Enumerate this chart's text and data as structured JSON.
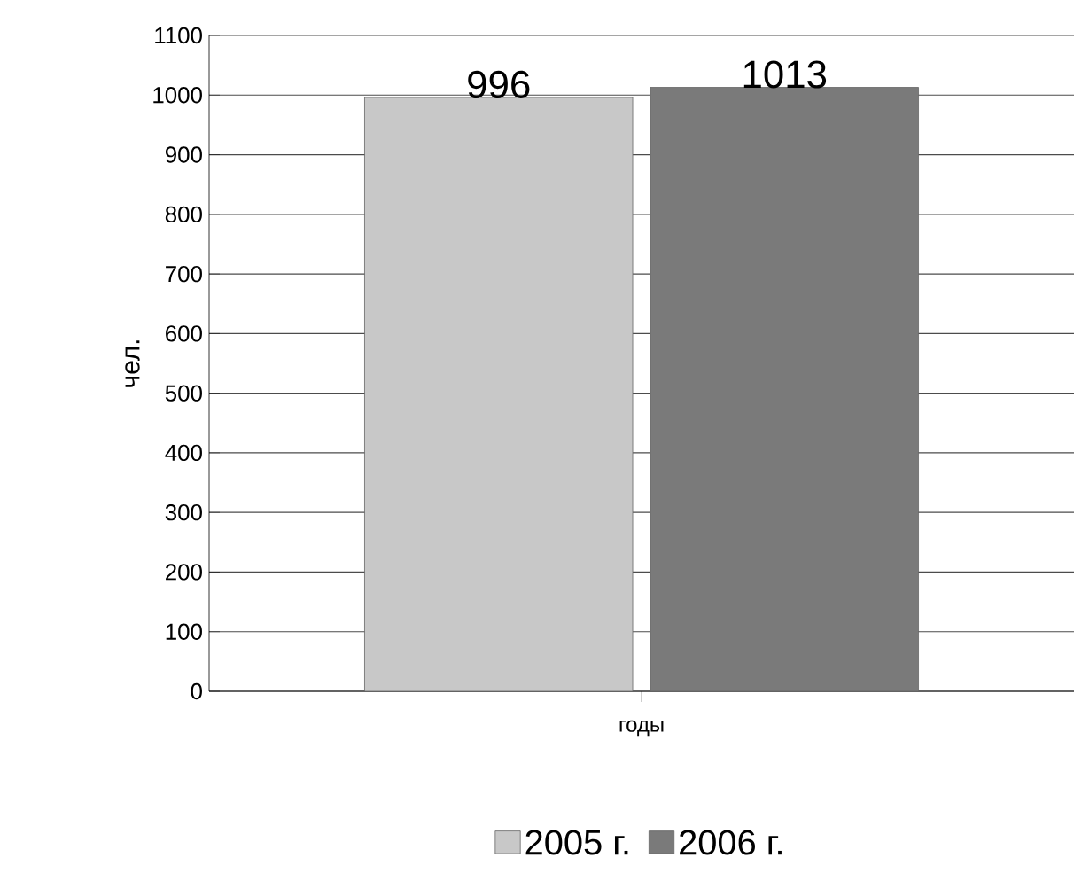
{
  "chart_data": {
    "type": "bar",
    "xlabel": "годы",
    "ylabel": "чел.",
    "categories": [
      null
    ],
    "series": [
      {
        "name": "2005 г.",
        "color": "#c8c8c8",
        "values": [
          996
        ]
      },
      {
        "name": "2006 г.",
        "color": "#7a7a7a",
        "values": [
          1013
        ]
      }
    ],
    "ylim": [
      0,
      1100
    ],
    "yticks": [
      0,
      100,
      200,
      300,
      400,
      500,
      600,
      700,
      800,
      900,
      1000,
      1100
    ],
    "grid": "y",
    "legend": "bottom",
    "data_labels": true
  }
}
